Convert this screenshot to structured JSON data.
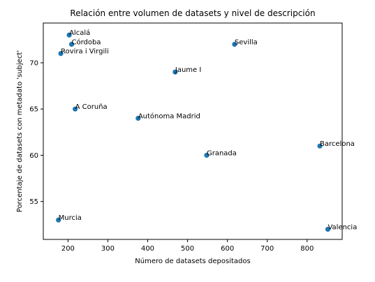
{
  "chart_data": {
    "type": "scatter",
    "title": "Relación entre volumen de datasets y nivel de descripción",
    "xlabel": "Número de datasets depositados",
    "ylabel": "Porcentaje de datasets con metadato 'subject'",
    "xlim": [
      138,
      888
    ],
    "ylim": [
      50.9,
      74.3
    ],
    "xticks": [
      200,
      300,
      400,
      500,
      600,
      700,
      800
    ],
    "yticks": [
      55,
      60,
      65,
      70
    ],
    "grid": false,
    "marker_color": "#1f77b4",
    "points": [
      {
        "label": "Alcalá",
        "x": 203,
        "y": 73
      },
      {
        "label": "Córdoba",
        "x": 209,
        "y": 72
      },
      {
        "label": "Rovira i Virgili",
        "x": 182,
        "y": 71
      },
      {
        "label": "Sevilla",
        "x": 618,
        "y": 72
      },
      {
        "label": "Jaume I",
        "x": 469,
        "y": 69
      },
      {
        "label": "A Coruña",
        "x": 218,
        "y": 65
      },
      {
        "label": "Autónoma Madrid",
        "x": 376,
        "y": 64
      },
      {
        "label": "Granada",
        "x": 548,
        "y": 60
      },
      {
        "label": "Barcelona",
        "x": 832,
        "y": 61
      },
      {
        "label": "Murcia",
        "x": 176,
        "y": 53
      },
      {
        "label": "Valencia",
        "x": 852,
        "y": 52
      }
    ]
  }
}
